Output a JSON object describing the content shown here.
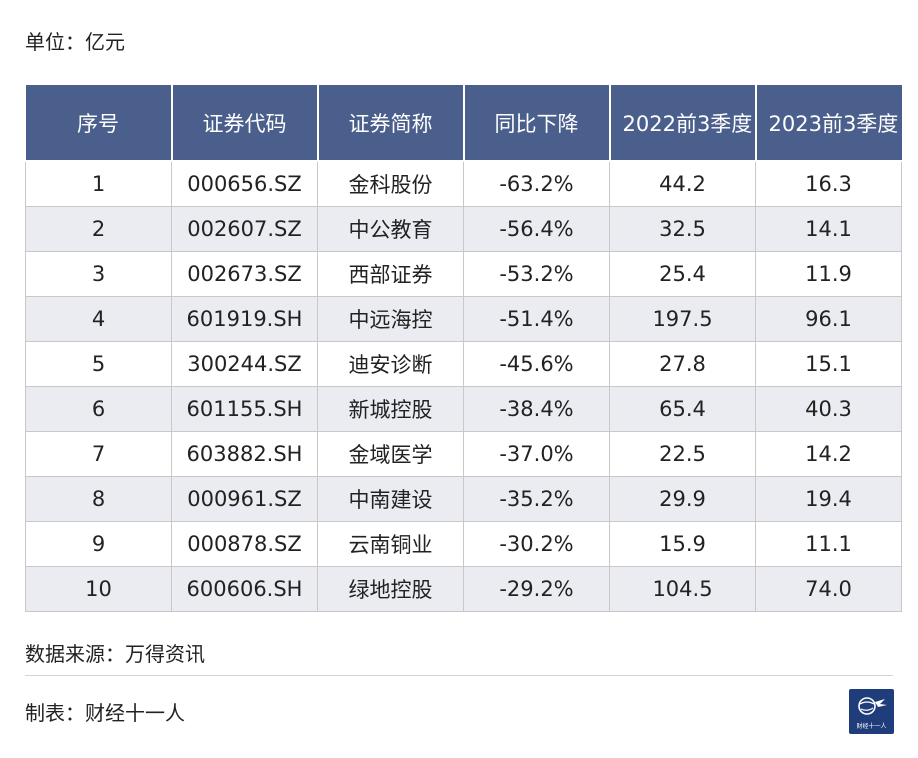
{
  "unit": "单位：亿元",
  "table": {
    "headers": [
      "序号",
      "证券代码",
      "证券简称",
      "同比下降",
      "2022前3季度",
      "2023前3季度"
    ],
    "rows": [
      [
        "1",
        "000656.SZ",
        "金科股份",
        "-63.2%",
        "44.2",
        "16.3"
      ],
      [
        "2",
        "002607.SZ",
        "中公教育",
        "-56.4%",
        "32.5",
        "14.1"
      ],
      [
        "3",
        "002673.SZ",
        "西部证券",
        "-53.2%",
        "25.4",
        "11.9"
      ],
      [
        "4",
        "601919.SH",
        "中远海控",
        "-51.4%",
        "197.5",
        "96.1"
      ],
      [
        "5",
        "300244.SZ",
        "迪安诊断",
        "-45.6%",
        "27.8",
        "15.1"
      ],
      [
        "6",
        "601155.SH",
        "新城控股",
        "-38.4%",
        "65.4",
        "40.3"
      ],
      [
        "7",
        "603882.SH",
        "金域医学",
        "-37.0%",
        "22.5",
        "14.2"
      ],
      [
        "8",
        "000961.SZ",
        "中南建设",
        "-35.2%",
        "29.9",
        "19.4"
      ],
      [
        "9",
        "000878.SZ",
        "云南铜业",
        "-30.2%",
        "15.9",
        "11.1"
      ],
      [
        "10",
        "600606.SH",
        "绿地控股",
        "-29.2%",
        "104.5",
        "74.0"
      ]
    ]
  },
  "footer": {
    "source": "数据来源：万得资讯",
    "maker": "制表：财经十一人",
    "logo_text": "财经十一人"
  },
  "colors": {
    "header_bg": "#4b5f8c",
    "stripe_bg": "#eaecf1",
    "logo_bg": "#1f3d7a"
  }
}
